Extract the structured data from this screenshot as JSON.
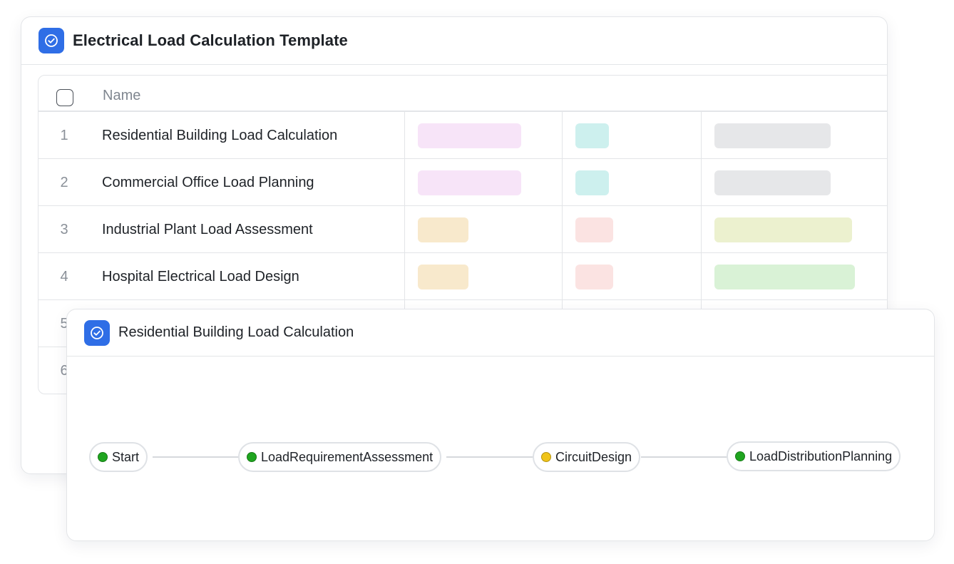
{
  "template": {
    "title": "Electrical Load Calculation Template",
    "header_check_icon": "circle-check-icon",
    "columns": {
      "name": "Name"
    },
    "rows": [
      {
        "num": "1",
        "name": "Residential Building Load Calculation",
        "tag_colors": [
          "#f7e4f8",
          "#cdf0ee",
          "#e6e7e9"
        ]
      },
      {
        "num": "2",
        "name": "Commercial Office Load Planning",
        "tag_colors": [
          "#f7e4f8",
          "#cdf0ee",
          "#e6e7e9"
        ]
      },
      {
        "num": "3",
        "name": "Industrial Plant Load Assessment",
        "tag_colors": [
          "#f8e9cc",
          "#fbe3e2",
          "#ecf1cf"
        ]
      },
      {
        "num": "4",
        "name": "Hospital Electrical Load Design",
        "tag_colors": [
          "#f8e9cc",
          "#fbe3e2",
          "#d9f2d6"
        ]
      },
      {
        "num": "5",
        "name": ""
      },
      {
        "num": "6",
        "name": ""
      }
    ]
  },
  "detail": {
    "title": "Residential Building Load Calculation",
    "header_check_icon": "circle-check-icon",
    "flow_nodes": [
      {
        "label": "Start",
        "status_color": "#1fa51f"
      },
      {
        "label": "LoadRequirementAssessment",
        "status_color": "#1fa51f"
      },
      {
        "label": "CircuitDesign",
        "status_color": "#f0c419"
      },
      {
        "label": "LoadDistributionPlanning",
        "status_color": "#1fa51f"
      }
    ]
  },
  "colors": {
    "accent": "#2f6ee6",
    "border": "#e3e5e8"
  }
}
